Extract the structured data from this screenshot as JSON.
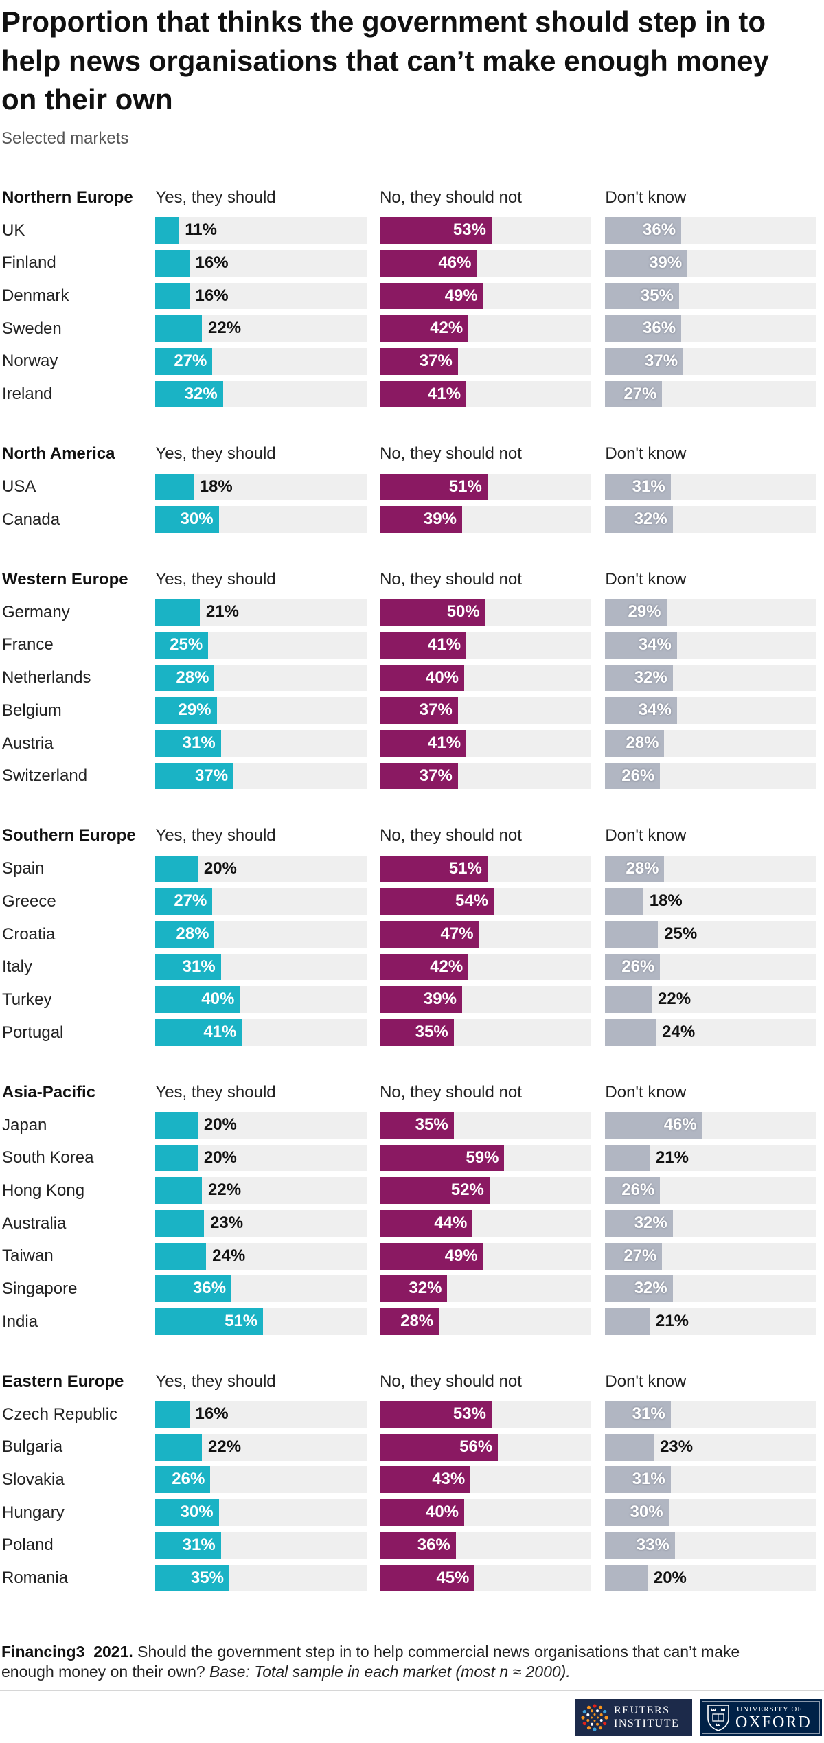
{
  "chart_data": {
    "type": "bar",
    "title": "Proportion that thinks the government should step in to help news organisations that can’t make enough money on their own",
    "subtitle": "Selected markets",
    "unit": "%",
    "xlim": [
      0,
      100
    ],
    "series": [
      {
        "name": "Yes, they should",
        "color": "#1ab3c5"
      },
      {
        "name": "No, they should not",
        "color": "#8a1962"
      },
      {
        "name": "Don't know",
        "color": "#b1b6c2"
      }
    ],
    "groups": [
      {
        "name": "Northern Europe",
        "rows": [
          {
            "market": "UK",
            "values": [
              11,
              53,
              36
            ]
          },
          {
            "market": "Finland",
            "values": [
              16,
              46,
              39
            ]
          },
          {
            "market": "Denmark",
            "values": [
              16,
              49,
              35
            ]
          },
          {
            "market": "Sweden",
            "values": [
              22,
              42,
              36
            ]
          },
          {
            "market": "Norway",
            "values": [
              27,
              37,
              37
            ]
          },
          {
            "market": "Ireland",
            "values": [
              32,
              41,
              27
            ]
          }
        ]
      },
      {
        "name": "North America",
        "rows": [
          {
            "market": "USA",
            "values": [
              18,
              51,
              31
            ]
          },
          {
            "market": "Canada",
            "values": [
              30,
              39,
              32
            ]
          }
        ]
      },
      {
        "name": "Western Europe",
        "rows": [
          {
            "market": "Germany",
            "values": [
              21,
              50,
              29
            ]
          },
          {
            "market": "France",
            "values": [
              25,
              41,
              34
            ]
          },
          {
            "market": "Netherlands",
            "values": [
              28,
              40,
              32
            ]
          },
          {
            "market": "Belgium",
            "values": [
              29,
              37,
              34
            ]
          },
          {
            "market": "Austria",
            "values": [
              31,
              41,
              28
            ]
          },
          {
            "market": "Switzerland",
            "values": [
              37,
              37,
              26
            ]
          }
        ]
      },
      {
        "name": "Southern Europe",
        "rows": [
          {
            "market": "Spain",
            "values": [
              20,
              51,
              28
            ]
          },
          {
            "market": "Greece",
            "values": [
              27,
              54,
              18
            ]
          },
          {
            "market": "Croatia",
            "values": [
              28,
              47,
              25
            ]
          },
          {
            "market": "Italy",
            "values": [
              31,
              42,
              26
            ]
          },
          {
            "market": "Turkey",
            "values": [
              40,
              39,
              22
            ]
          },
          {
            "market": "Portugal",
            "values": [
              41,
              35,
              24
            ]
          }
        ]
      },
      {
        "name": "Asia-Pacific",
        "rows": [
          {
            "market": "Japan",
            "values": [
              20,
              35,
              46
            ]
          },
          {
            "market": "South Korea",
            "values": [
              20,
              59,
              21
            ]
          },
          {
            "market": "Hong Kong",
            "values": [
              22,
              52,
              26
            ]
          },
          {
            "market": "Australia",
            "values": [
              23,
              44,
              32
            ]
          },
          {
            "market": "Taiwan",
            "values": [
              24,
              49,
              27
            ]
          },
          {
            "market": "Singapore",
            "values": [
              36,
              32,
              32
            ]
          },
          {
            "market": "India",
            "values": [
              51,
              28,
              21
            ]
          }
        ]
      },
      {
        "name": "Eastern Europe",
        "rows": [
          {
            "market": "Czech Republic",
            "values": [
              16,
              53,
              31
            ]
          },
          {
            "market": "Bulgaria",
            "values": [
              22,
              56,
              23
            ]
          },
          {
            "market": "Slovakia",
            "values": [
              26,
              43,
              31
            ]
          },
          {
            "market": "Hungary",
            "values": [
              30,
              40,
              30
            ]
          },
          {
            "market": "Poland",
            "values": [
              31,
              36,
              33
            ]
          },
          {
            "market": "Romania",
            "values": [
              35,
              45,
              20
            ]
          }
        ]
      }
    ]
  },
  "note": {
    "source_id": "Financing3_2021.",
    "question": "Should the government step in to help commercial news organisations that can’t make enough money on their own?",
    "base": "Base: Total sample in each market (most n ≈ 2000)."
  },
  "logos": {
    "reuters_institute": {
      "line1": "REUTERS",
      "line2": "INSTITUTE",
      "color": "#1c2a4a"
    },
    "oxford": {
      "line1": "UNIVERSITY OF",
      "line2": "OXFORD",
      "color": "#002147"
    }
  }
}
